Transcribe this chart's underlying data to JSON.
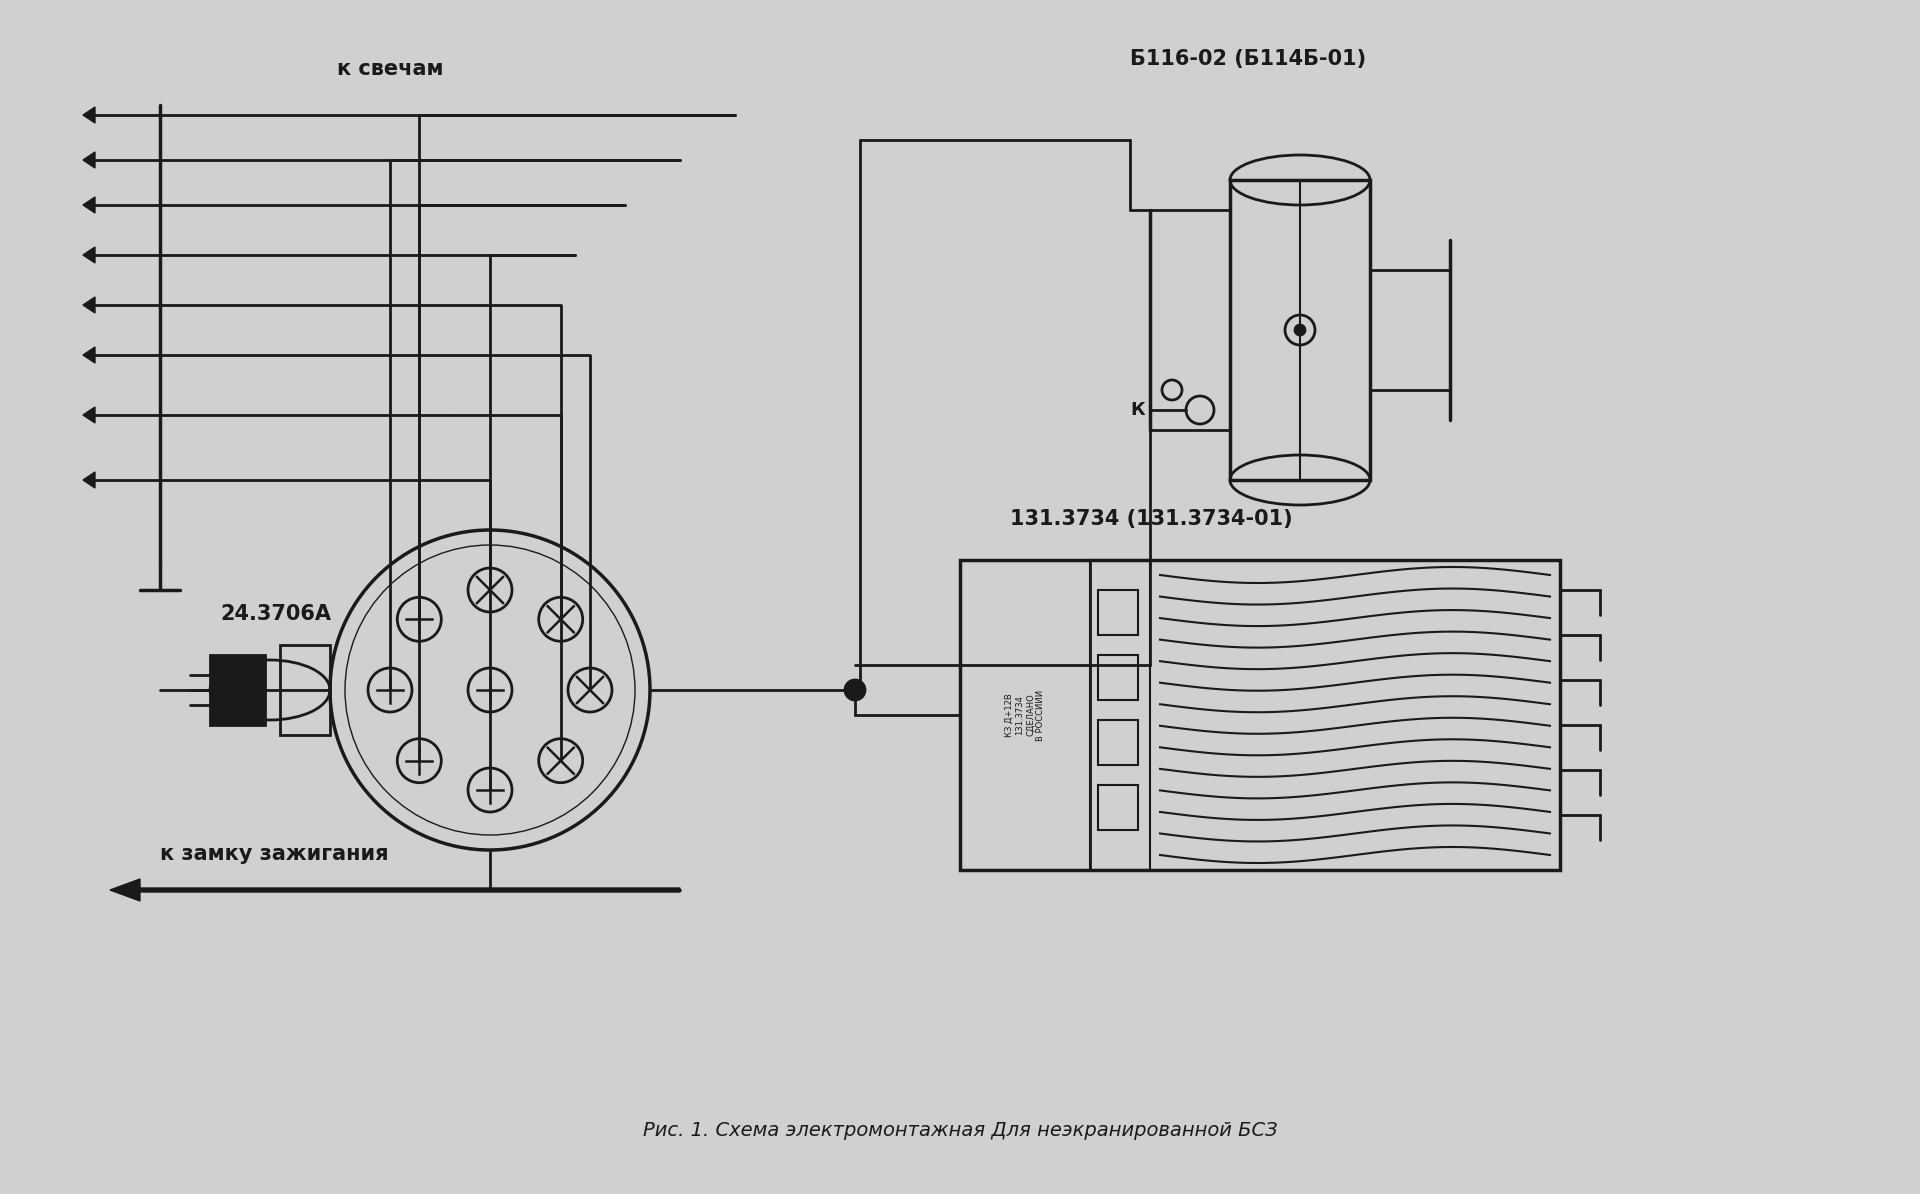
{
  "bg_color": "#d0d0d0",
  "line_color": "#1a1a1a",
  "title": "Рис. 1. Схема электромонтажная Для неэкранированной БСЗ",
  "label_svechyam": "к свечам",
  "label_zamku": "к замку зажигания",
  "label_distributor": "24.3706А",
  "label_coil": "Б116-02 (Б114Б-01)",
  "label_module": "131.3734 (131.3734-01)",
  "label_k": "К",
  "title_fontsize": 14,
  "label_fontsize": 14
}
